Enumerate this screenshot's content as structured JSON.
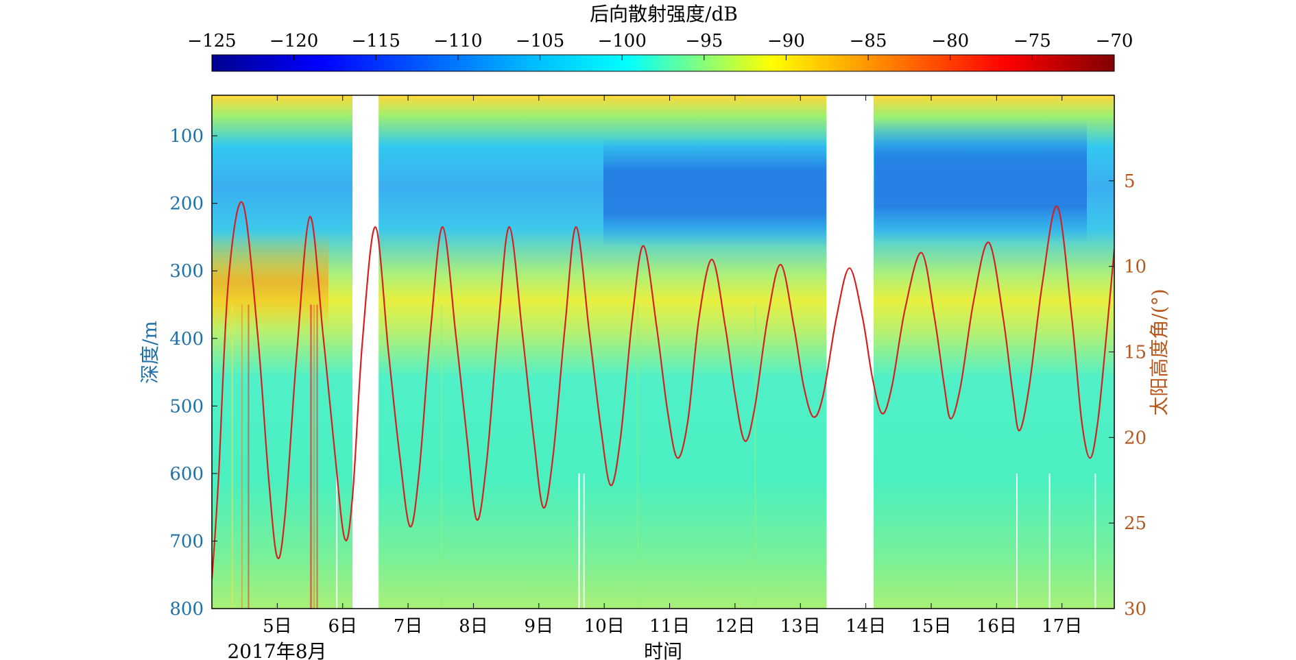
{
  "chart_data": {
    "type": "heatmap",
    "colorbar": {
      "title": "后向散射强度/dB",
      "ticks": [
        "−125",
        "−120",
        "−115",
        "−110",
        "−105",
        "−100",
        "−95",
        "−90",
        "−85",
        "−80",
        "−75",
        "−70"
      ],
      "range": [
        -125,
        -70
      ],
      "colormap": "jet",
      "position": "top"
    },
    "x_axis": {
      "label": "时间",
      "sublabel": "2017年8月",
      "range": [
        4.0,
        17.8
      ],
      "ticks": [
        {
          "value": 5,
          "label": "5日"
        },
        {
          "value": 6,
          "label": "6日"
        },
        {
          "value": 7,
          "label": "7日"
        },
        {
          "value": 8,
          "label": "8日"
        },
        {
          "value": 9,
          "label": "9日"
        },
        {
          "value": 10,
          "label": "10日"
        },
        {
          "value": 11,
          "label": "11日"
        },
        {
          "value": 12,
          "label": "12日"
        },
        {
          "value": 13,
          "label": "13日"
        },
        {
          "value": 14,
          "label": "14日"
        },
        {
          "value": 15,
          "label": "15日"
        },
        {
          "value": 16,
          "label": "16日"
        },
        {
          "value": 17,
          "label": "17日"
        }
      ]
    },
    "y_left": {
      "label": "深度/m",
      "range": [
        40,
        800
      ],
      "reversed": true,
      "ticks": [
        {
          "value": 100,
          "label": "100"
        },
        {
          "value": 200,
          "label": "200"
        },
        {
          "value": 300,
          "label": "300"
        },
        {
          "value": 400,
          "label": "400"
        },
        {
          "value": 500,
          "label": "500"
        },
        {
          "value": 600,
          "label": "600"
        },
        {
          "value": 700,
          "label": "700"
        },
        {
          "value": 800,
          "label": "800"
        }
      ],
      "color": "#1f6fa8"
    },
    "y_right": {
      "label": "太阳高度角/(°)",
      "range": [
        0,
        30
      ],
      "reversed": true,
      "ticks": [
        {
          "value": 5,
          "label": "5"
        },
        {
          "value": 10,
          "label": "10"
        },
        {
          "value": 15,
          "label": "15"
        },
        {
          "value": 20,
          "label": "20"
        },
        {
          "value": 25,
          "label": "25"
        },
        {
          "value": 30,
          "label": "30"
        }
      ],
      "color": "#b8561c"
    },
    "data_gaps": [
      [
        6.15,
        6.55
      ],
      [
        13.4,
        14.12
      ]
    ],
    "series": [
      {
        "line_color": "#d42020",
        "axis": "right",
        "points": [
          [
            4.0,
            28.3
          ],
          [
            4.1,
            22.5
          ],
          [
            4.25,
            11.0
          ],
          [
            4.47,
            6.3
          ],
          [
            4.7,
            14.0
          ],
          [
            4.87,
            22.5
          ],
          [
            5.0,
            27.0
          ],
          [
            5.12,
            24.5
          ],
          [
            5.3,
            15.0
          ],
          [
            5.5,
            7.1
          ],
          [
            5.7,
            14.0
          ],
          [
            5.87,
            20.5
          ],
          [
            6.03,
            25.9
          ],
          [
            6.15,
            23.5
          ],
          [
            6.3,
            14.5
          ],
          [
            6.5,
            7.7
          ],
          [
            6.7,
            15.0
          ],
          [
            6.87,
            21.0
          ],
          [
            7.03,
            25.2
          ],
          [
            7.17,
            22.0
          ],
          [
            7.35,
            13.5
          ],
          [
            7.53,
            7.7
          ],
          [
            7.73,
            14.0
          ],
          [
            7.9,
            20.0
          ],
          [
            8.05,
            24.8
          ],
          [
            8.2,
            21.5
          ],
          [
            8.38,
            13.5
          ],
          [
            8.55,
            7.7
          ],
          [
            8.75,
            14.0
          ],
          [
            8.92,
            20.0
          ],
          [
            9.07,
            24.1
          ],
          [
            9.22,
            21.0
          ],
          [
            9.4,
            13.5
          ],
          [
            9.57,
            7.7
          ],
          [
            9.77,
            13.8
          ],
          [
            9.95,
            19.5
          ],
          [
            10.1,
            22.8
          ],
          [
            10.25,
            20.0
          ],
          [
            10.43,
            13.0
          ],
          [
            10.6,
            8.8
          ],
          [
            10.8,
            13.5
          ],
          [
            10.97,
            18.5
          ],
          [
            11.12,
            21.2
          ],
          [
            11.28,
            19.0
          ],
          [
            11.45,
            13.0
          ],
          [
            11.65,
            9.6
          ],
          [
            11.85,
            13.5
          ],
          [
            12.0,
            17.5
          ],
          [
            12.15,
            20.2
          ],
          [
            12.3,
            18.3
          ],
          [
            12.5,
            13.0
          ],
          [
            12.7,
            9.9
          ],
          [
            12.9,
            13.5
          ],
          [
            13.05,
            17.0
          ],
          [
            13.2,
            18.8
          ],
          [
            13.35,
            17.5
          ],
          [
            13.55,
            13.0
          ],
          [
            13.75,
            10.1
          ],
          [
            13.95,
            13.0
          ],
          [
            14.1,
            16.5
          ],
          [
            14.25,
            18.6
          ],
          [
            14.4,
            17.0
          ],
          [
            14.6,
            12.5
          ],
          [
            14.85,
            9.2
          ],
          [
            15.05,
            13.0
          ],
          [
            15.2,
            17.0
          ],
          [
            15.3,
            18.9
          ],
          [
            15.45,
            17.0
          ],
          [
            15.65,
            12.0
          ],
          [
            15.88,
            8.6
          ],
          [
            16.1,
            13.0
          ],
          [
            16.25,
            17.5
          ],
          [
            16.35,
            19.6
          ],
          [
            16.5,
            17.0
          ],
          [
            16.7,
            11.0
          ],
          [
            16.93,
            6.5
          ],
          [
            17.15,
            13.0
          ],
          [
            17.3,
            19.0
          ],
          [
            17.43,
            21.2
          ],
          [
            17.55,
            19.0
          ],
          [
            17.68,
            14.0
          ],
          [
            17.8,
            9.0
          ]
        ]
      }
    ]
  }
}
